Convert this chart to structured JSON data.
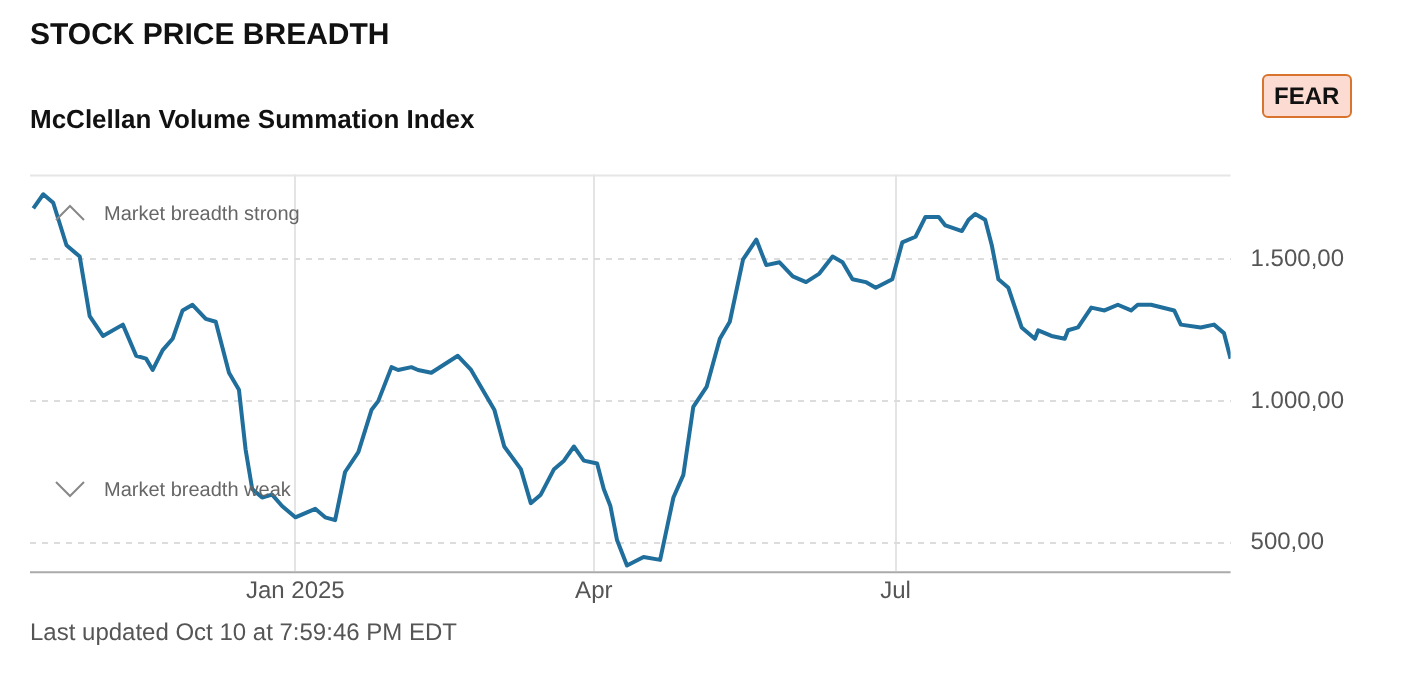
{
  "chart_data": {
    "type": "line",
    "title": "STOCK PRICE BREADTH",
    "subtitle": "McClellan Volume Summation Index",
    "annotations": [
      "Market breadth strong",
      "Market breadth weak",
      "FEAR",
      "Last updated Oct 10 at 7:59:46 PM EDT"
    ],
    "x": [
      "2024-10-14",
      "2024-10-17",
      "2024-10-20",
      "2024-10-24",
      "2024-10-28",
      "2024-10-31",
      "2024-11-04",
      "2024-11-10",
      "2024-11-14",
      "2024-11-17",
      "2024-11-19",
      "2024-11-22",
      "2024-11-25",
      "2024-11-28",
      "2024-12-01",
      "2024-12-05",
      "2024-12-08",
      "2024-12-12",
      "2024-12-15",
      "2024-12-17",
      "2024-12-19",
      "2024-12-22",
      "2024-12-25",
      "2024-12-28",
      "2025-01-01",
      "2025-01-07",
      "2025-01-10",
      "2025-01-13",
      "2025-01-16",
      "2025-01-20",
      "2025-01-24",
      "2025-01-26",
      "2025-01-30",
      "2025-02-01",
      "2025-02-05",
      "2025-02-07",
      "2025-02-11",
      "2025-02-15",
      "2025-02-19",
      "2025-02-23",
      "2025-02-27",
      "2025-03-02",
      "2025-03-05",
      "2025-03-10",
      "2025-03-13",
      "2025-03-16",
      "2025-03-20",
      "2025-03-23",
      "2025-03-26",
      "2025-03-29",
      "2025-04-02",
      "2025-04-04",
      "2025-04-06",
      "2025-04-08",
      "2025-04-11",
      "2025-04-16",
      "2025-04-21",
      "2025-04-25",
      "2025-04-28",
      "2025-05-01",
      "2025-05-05",
      "2025-05-09",
      "2025-05-12",
      "2025-05-16",
      "2025-05-20",
      "2025-05-23",
      "2025-05-27",
      "2025-05-31",
      "2025-06-04",
      "2025-06-08",
      "2025-06-12",
      "2025-06-15",
      "2025-06-18",
      "2025-06-22",
      "2025-06-25",
      "2025-06-30",
      "2025-07-03",
      "2025-07-07",
      "2025-07-10",
      "2025-07-14",
      "2025-07-16",
      "2025-07-21",
      "2025-07-23",
      "2025-07-25",
      "2025-07-28",
      "2025-07-30",
      "2025-08-01",
      "2025-08-04",
      "2025-08-08",
      "2025-08-12",
      "2025-08-13",
      "2025-08-17",
      "2025-08-21",
      "2025-08-22",
      "2025-08-25",
      "2025-08-29",
      "2025-09-02",
      "2025-09-06",
      "2025-09-10",
      "2025-09-12",
      "2025-09-16",
      "2025-09-23",
      "2025-09-25",
      "2025-10-01",
      "2025-10-05",
      "2025-10-08",
      "2025-10-10"
    ],
    "series": [
      {
        "color": "#1f6e9c",
        "values": [
          1680,
          1730,
          1700,
          1550,
          1510,
          1300,
          1230,
          1270,
          1160,
          1150,
          1110,
          1180,
          1220,
          1320,
          1340,
          1290,
          1280,
          1100,
          1040,
          830,
          690,
          660,
          670,
          630,
          590,
          620,
          590,
          580,
          750,
          820,
          970,
          1000,
          1120,
          1110,
          1120,
          1110,
          1100,
          1130,
          1160,
          1110,
          1030,
          970,
          840,
          760,
          640,
          670,
          760,
          790,
          840,
          790,
          780,
          690,
          630,
          510,
          420,
          450,
          440,
          660,
          740,
          980,
          1050,
          1220,
          1280,
          1500,
          1570,
          1480,
          1490,
          1440,
          1420,
          1450,
          1510,
          1490,
          1430,
          1420,
          1400,
          1430,
          1560,
          1580,
          1650,
          1650,
          1620,
          1600,
          1640,
          1660,
          1640,
          1550,
          1430,
          1400,
          1260,
          1220,
          1250,
          1230,
          1220,
          1250,
          1260,
          1330,
          1320,
          1340,
          1320,
          1340,
          1340,
          1320,
          1270,
          1260,
          1270,
          1240,
          1150
        ]
      }
    ],
    "xlim": [
      "2024-10-13",
      "2025-10-10"
    ],
    "xticks": [
      {
        "value": "2025-01-01",
        "label": "Jan 2025"
      },
      {
        "value": "2025-04-01",
        "label": "Apr"
      },
      {
        "value": "2025-07-01",
        "label": "Jul"
      }
    ],
    "ylim": [
      400,
      1800
    ],
    "yticks": [
      {
        "value": 500,
        "label": "500,00"
      },
      {
        "value": 1000,
        "label": "1.000,00"
      },
      {
        "value": 1500,
        "label": "1.500,00"
      }
    ],
    "grid": true,
    "legend": false,
    "marker": "none",
    "line_style": "solid"
  }
}
